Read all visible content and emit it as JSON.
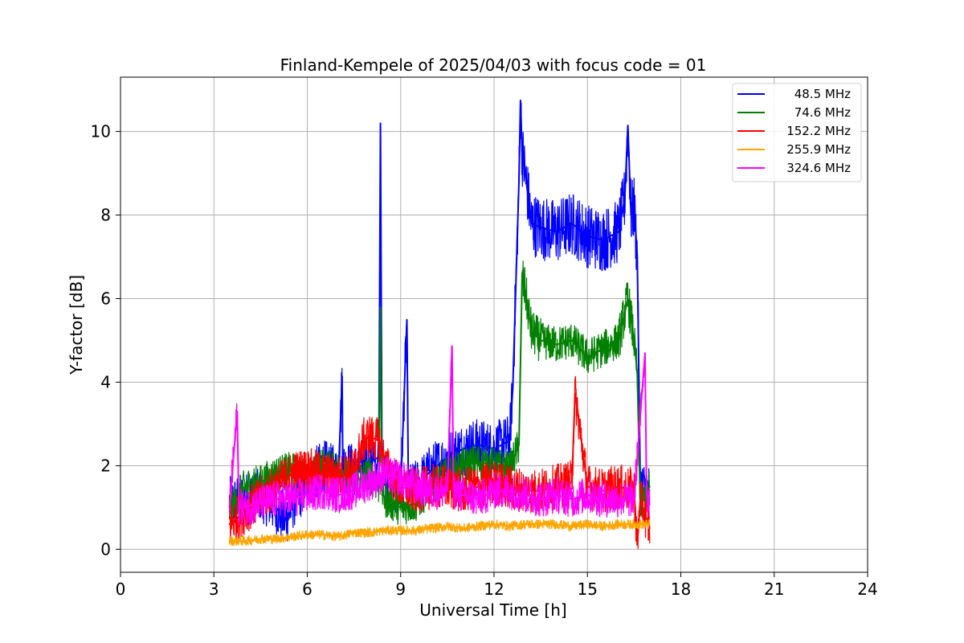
{
  "chart_data": {
    "type": "line",
    "title": "Finland-Kempele of 2025/04/03 with focus code = 01",
    "xlabel": "Universal Time [h]",
    "ylabel": "Y-factor [dB]",
    "xlim": [
      0,
      24
    ],
    "ylim": [
      -0.55,
      11.3
    ],
    "xticks": [
      0,
      3,
      6,
      9,
      12,
      15,
      18,
      21,
      24
    ],
    "yticks": [
      0,
      2,
      4,
      6,
      8,
      10
    ],
    "xtick_labels": [
      "0",
      "3",
      "6",
      "9",
      "12",
      "15",
      "18",
      "21",
      "24"
    ],
    "ytick_labels": [
      "0",
      "2",
      "4",
      "6",
      "8",
      "10"
    ],
    "grid": true,
    "legend_position": "top-right",
    "series": [
      {
        "name": "48.5 MHz",
        "color": "#0000ff",
        "x": [
          3.5,
          4.0,
          4.5,
          5.0,
          5.3,
          5.6,
          6.0,
          6.5,
          7.0,
          7.12,
          7.14,
          7.5,
          8.0,
          8.3,
          8.35,
          8.4,
          8.5,
          9.0,
          9.2,
          9.25,
          9.5,
          10.0,
          10.5,
          11.0,
          11.5,
          12.0,
          12.5,
          12.6,
          12.8,
          12.85,
          12.9,
          13.0,
          13.2,
          13.5,
          14.0,
          14.5,
          15.0,
          15.5,
          16.0,
          16.2,
          16.3,
          16.4,
          16.5,
          16.6,
          16.7,
          17.0
        ],
        "y": [
          1.1,
          1.2,
          1.3,
          1.0,
          0.7,
          1.2,
          1.6,
          2.0,
          1.8,
          4.15,
          2.0,
          1.9,
          2.1,
          2.2,
          10.2,
          2.0,
          1.7,
          1.4,
          5.5,
          1.4,
          1.5,
          1.9,
          2.2,
          2.4,
          2.5,
          2.4,
          2.6,
          3.85,
          8.8,
          10.75,
          9.5,
          9.0,
          7.8,
          7.7,
          7.6,
          7.8,
          7.5,
          7.4,
          7.6,
          8.4,
          10.15,
          8.0,
          8.2,
          7.0,
          1.5,
          1.4
        ]
      },
      {
        "name": "74.6 MHz",
        "color": "#008000",
        "x": [
          3.5,
          4.0,
          4.5,
          5.0,
          5.5,
          6.0,
          6.5,
          7.0,
          7.5,
          8.0,
          8.3,
          8.35,
          8.4,
          8.5,
          9.0,
          9.5,
          10.0,
          10.5,
          11.0,
          11.5,
          12.0,
          12.5,
          12.8,
          12.9,
          13.0,
          13.2,
          13.5,
          14.0,
          14.5,
          15.0,
          15.5,
          16.0,
          16.3,
          16.5,
          16.6,
          16.7,
          17.0
        ],
        "y": [
          0.9,
          1.5,
          1.6,
          1.8,
          1.9,
          1.7,
          2.0,
          1.9,
          1.6,
          1.8,
          1.5,
          5.8,
          1.4,
          1.2,
          1.0,
          1.1,
          1.5,
          1.8,
          2.0,
          2.1,
          2.0,
          1.9,
          2.5,
          6.5,
          6.2,
          5.2,
          5.0,
          4.9,
          5.0,
          4.6,
          4.8,
          5.0,
          6.0,
          5.0,
          4.2,
          1.0,
          1.5
        ]
      },
      {
        "name": "152.2 MHz",
        "color": "#ff0000",
        "x": [
          3.5,
          4.0,
          4.5,
          5.0,
          5.5,
          6.0,
          6.5,
          7.0,
          7.5,
          7.8,
          8.0,
          8.3,
          8.5,
          9.0,
          9.5,
          10.0,
          10.5,
          11.0,
          11.5,
          12.0,
          12.5,
          13.0,
          13.5,
          14.0,
          14.5,
          14.6,
          15.0,
          15.5,
          16.0,
          16.5,
          16.6,
          16.7,
          17.0
        ],
        "y": [
          0.6,
          0.9,
          1.2,
          1.5,
          1.8,
          1.9,
          1.8,
          1.7,
          1.9,
          2.6,
          2.7,
          2.6,
          2.0,
          1.5,
          1.4,
          1.5,
          1.5,
          1.4,
          1.5,
          1.6,
          1.5,
          1.4,
          1.4,
          1.5,
          1.6,
          3.75,
          1.5,
          1.4,
          1.5,
          1.4,
          0.1,
          1.2,
          0.5
        ]
      },
      {
        "name": "255.9 MHz",
        "color": "#ffa500",
        "x": [
          3.5,
          4.0,
          4.5,
          5.0,
          5.5,
          6.0,
          6.5,
          7.0,
          7.5,
          8.0,
          8.5,
          9.0,
          9.5,
          10.0,
          10.5,
          11.0,
          11.5,
          12.0,
          12.5,
          13.0,
          13.5,
          14.0,
          14.5,
          15.0,
          15.5,
          16.0,
          16.5,
          17.0
        ],
        "y": [
          0.2,
          0.2,
          0.25,
          0.25,
          0.3,
          0.35,
          0.35,
          0.3,
          0.4,
          0.4,
          0.45,
          0.45,
          0.45,
          0.5,
          0.55,
          0.5,
          0.55,
          0.6,
          0.55,
          0.6,
          0.6,
          0.6,
          0.55,
          0.6,
          0.55,
          0.6,
          0.6,
          0.6
        ]
      },
      {
        "name": "324.6 MHz",
        "color": "#ff00ff",
        "x": [
          3.5,
          3.75,
          3.8,
          4.0,
          4.5,
          5.0,
          5.5,
          6.0,
          6.5,
          7.0,
          7.5,
          8.0,
          8.5,
          9.0,
          9.5,
          10.0,
          10.5,
          10.65,
          10.7,
          11.0,
          11.5,
          12.0,
          12.5,
          13.0,
          13.5,
          14.0,
          14.5,
          15.0,
          15.5,
          16.0,
          16.5,
          16.85,
          16.9,
          17.0
        ],
        "y": [
          1.0,
          3.3,
          1.0,
          1.0,
          1.1,
          1.2,
          1.2,
          1.3,
          1.4,
          1.3,
          1.4,
          1.6,
          1.8,
          1.7,
          1.5,
          1.4,
          1.4,
          4.85,
          1.4,
          1.3,
          1.2,
          1.4,
          1.4,
          1.3,
          1.2,
          1.3,
          1.2,
          1.3,
          1.2,
          1.2,
          1.2,
          4.7,
          1.3,
          1.2
        ]
      }
    ]
  }
}
